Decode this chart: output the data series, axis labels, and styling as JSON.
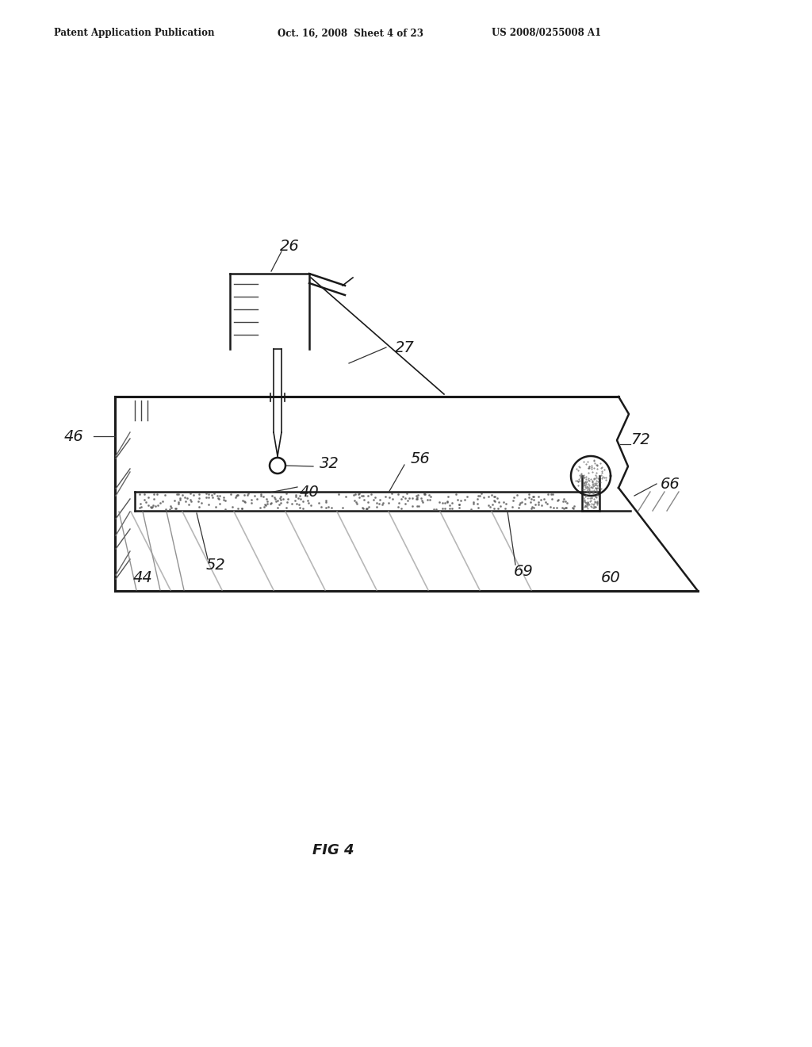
{
  "title": "FIG 4",
  "header_left": "Patent Application Publication",
  "header_center": "Oct. 16, 2008  Sheet 4 of 23",
  "header_right": "US 2008/0255008 A1",
  "background_color": "#ffffff",
  "line_color": "#1a1a1a",
  "label_color": "#1a1a1a"
}
